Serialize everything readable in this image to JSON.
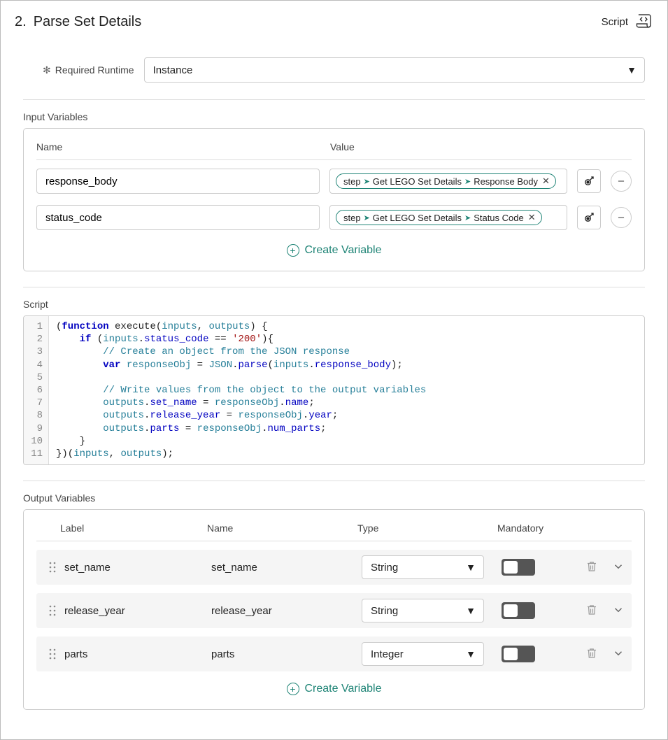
{
  "header": {
    "step_number": "2.",
    "title": "Parse Set Details",
    "script_link": "Script"
  },
  "runtime": {
    "label": "Required Runtime",
    "value": "Instance"
  },
  "input_variables": {
    "section_label": "Input Variables",
    "col_name": "Name",
    "col_value": "Value",
    "rows": [
      {
        "name": "response_body",
        "pill_parts": [
          "step",
          "Get LEGO Set Details",
          "Response Body"
        ]
      },
      {
        "name": "status_code",
        "pill_parts": [
          "step",
          "Get LEGO Set Details",
          "Status Code"
        ]
      }
    ],
    "create_label": "Create Variable"
  },
  "script": {
    "section_label": "Script",
    "lines": [
      "(function execute(inputs, outputs) {",
      "    if (inputs.status_code == '200'){",
      "        // Create an object from the JSON response",
      "        var responseObj = JSON.parse(inputs.response_body);",
      "",
      "        // Write values from the object to the output variables",
      "        outputs.set_name = responseObj.name;",
      "        outputs.release_year = responseObj.year;",
      "        outputs.parts = responseObj.num_parts;",
      "    }",
      "})(inputs, outputs);"
    ]
  },
  "output_variables": {
    "section_label": "Output Variables",
    "col_label": "Label",
    "col_name": "Name",
    "col_type": "Type",
    "col_mandatory": "Mandatory",
    "rows": [
      {
        "label": "set_name",
        "name": "set_name",
        "type": "String",
        "mandatory": false
      },
      {
        "label": "release_year",
        "name": "release_year",
        "type": "String",
        "mandatory": false
      },
      {
        "label": "parts",
        "name": "parts",
        "type": "Integer",
        "mandatory": false
      }
    ],
    "create_label": "Create Variable"
  },
  "colors": {
    "accent": "#1f8476",
    "border": "#cccccc"
  }
}
